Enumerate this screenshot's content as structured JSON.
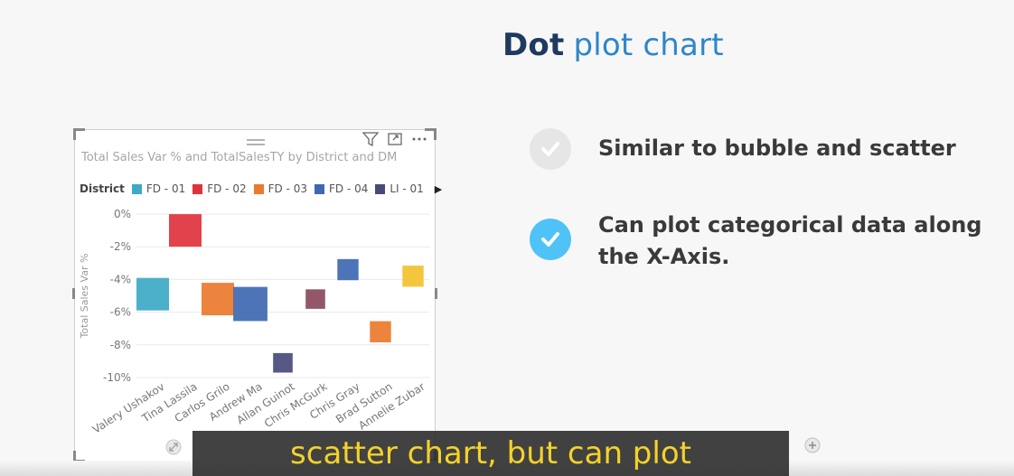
{
  "slide": {
    "title_bold": "Dot",
    "title_light": "plot chart",
    "bullets": [
      {
        "lines": [
          "Similar to bubble and scatter"
        ],
        "checked": false
      },
      {
        "lines": [
          "Can plot categorical data along",
          "the X-Axis."
        ],
        "checked": true
      }
    ],
    "colors": {
      "check_active": "#4fc3f7",
      "check_inactive": "#e6e6e6"
    }
  },
  "visual": {
    "title": "Total Sales Var % and TotalSalesTY by District and DM",
    "icons": [
      "drag-handle-icon",
      "filter-icon",
      "focus-mode-icon",
      "more-options-icon"
    ],
    "legend": {
      "title": "District",
      "items": [
        {
          "label": "FD - 01",
          "color": "#3ea9c7"
        },
        {
          "label": "FD - 02",
          "color": "#e0323c"
        },
        {
          "label": "FD - 03",
          "color": "#ea7a2e"
        },
        {
          "label": "FD - 04",
          "color": "#3e68b0"
        },
        {
          "label": "LI - 01",
          "color": "#4a4a7a"
        }
      ]
    }
  },
  "chart_data": {
    "type": "scatter",
    "title": "Total Sales Var % and TotalSalesTY by District and DM",
    "ylabel": "Total Sales Var %",
    "xlabel": "",
    "ylim": [
      -10,
      0
    ],
    "yticks": [
      "0%",
      "-2%",
      "-4%",
      "-6%",
      "-8%",
      "-10%"
    ],
    "categories": [
      "Valery Ushakov",
      "Tina Lassila",
      "Carlos Grilo",
      "Andrew Ma",
      "Allan Guinot",
      "Chris McGurk",
      "Chris Gray",
      "Brad Sutton",
      "Annelie Zubar"
    ],
    "points": [
      {
        "category": "Valery Ushakov",
        "y": -4.9,
        "size": 2.0,
        "district": "FD - 01",
        "color": "#3ea9c7"
      },
      {
        "category": "Tina Lassila",
        "y": -1.0,
        "size": 2.0,
        "district": "FD - 02",
        "color": "#e0323c"
      },
      {
        "category": "Carlos Grilo",
        "y": -5.2,
        "size": 2.0,
        "district": "FD - 03",
        "color": "#ea7a2e"
      },
      {
        "category": "Andrew Ma",
        "y": -5.5,
        "size": 2.1,
        "district": "FD - 04",
        "color": "#3e68b0"
      },
      {
        "category": "Allan Guinot",
        "y": -9.1,
        "size": 1.2,
        "district": "LI - 01",
        "color": "#4a4a7a"
      },
      {
        "category": "Chris McGurk",
        "y": -5.2,
        "size": 1.2,
        "district": "",
        "color": "#8a4a5a"
      },
      {
        "category": "Chris Gray",
        "y": -3.4,
        "size": 1.3,
        "district": "FD - 04",
        "color": "#3e68b0"
      },
      {
        "category": "Brad Sutton",
        "y": -7.2,
        "size": 1.3,
        "district": "FD - 03",
        "color": "#ea7a2e"
      },
      {
        "category": "Annelie Zubar",
        "y": -3.8,
        "size": 1.3,
        "district": "",
        "color": "#f2c12e"
      }
    ]
  },
  "player": {
    "caption": "scatter chart, but can plot"
  }
}
